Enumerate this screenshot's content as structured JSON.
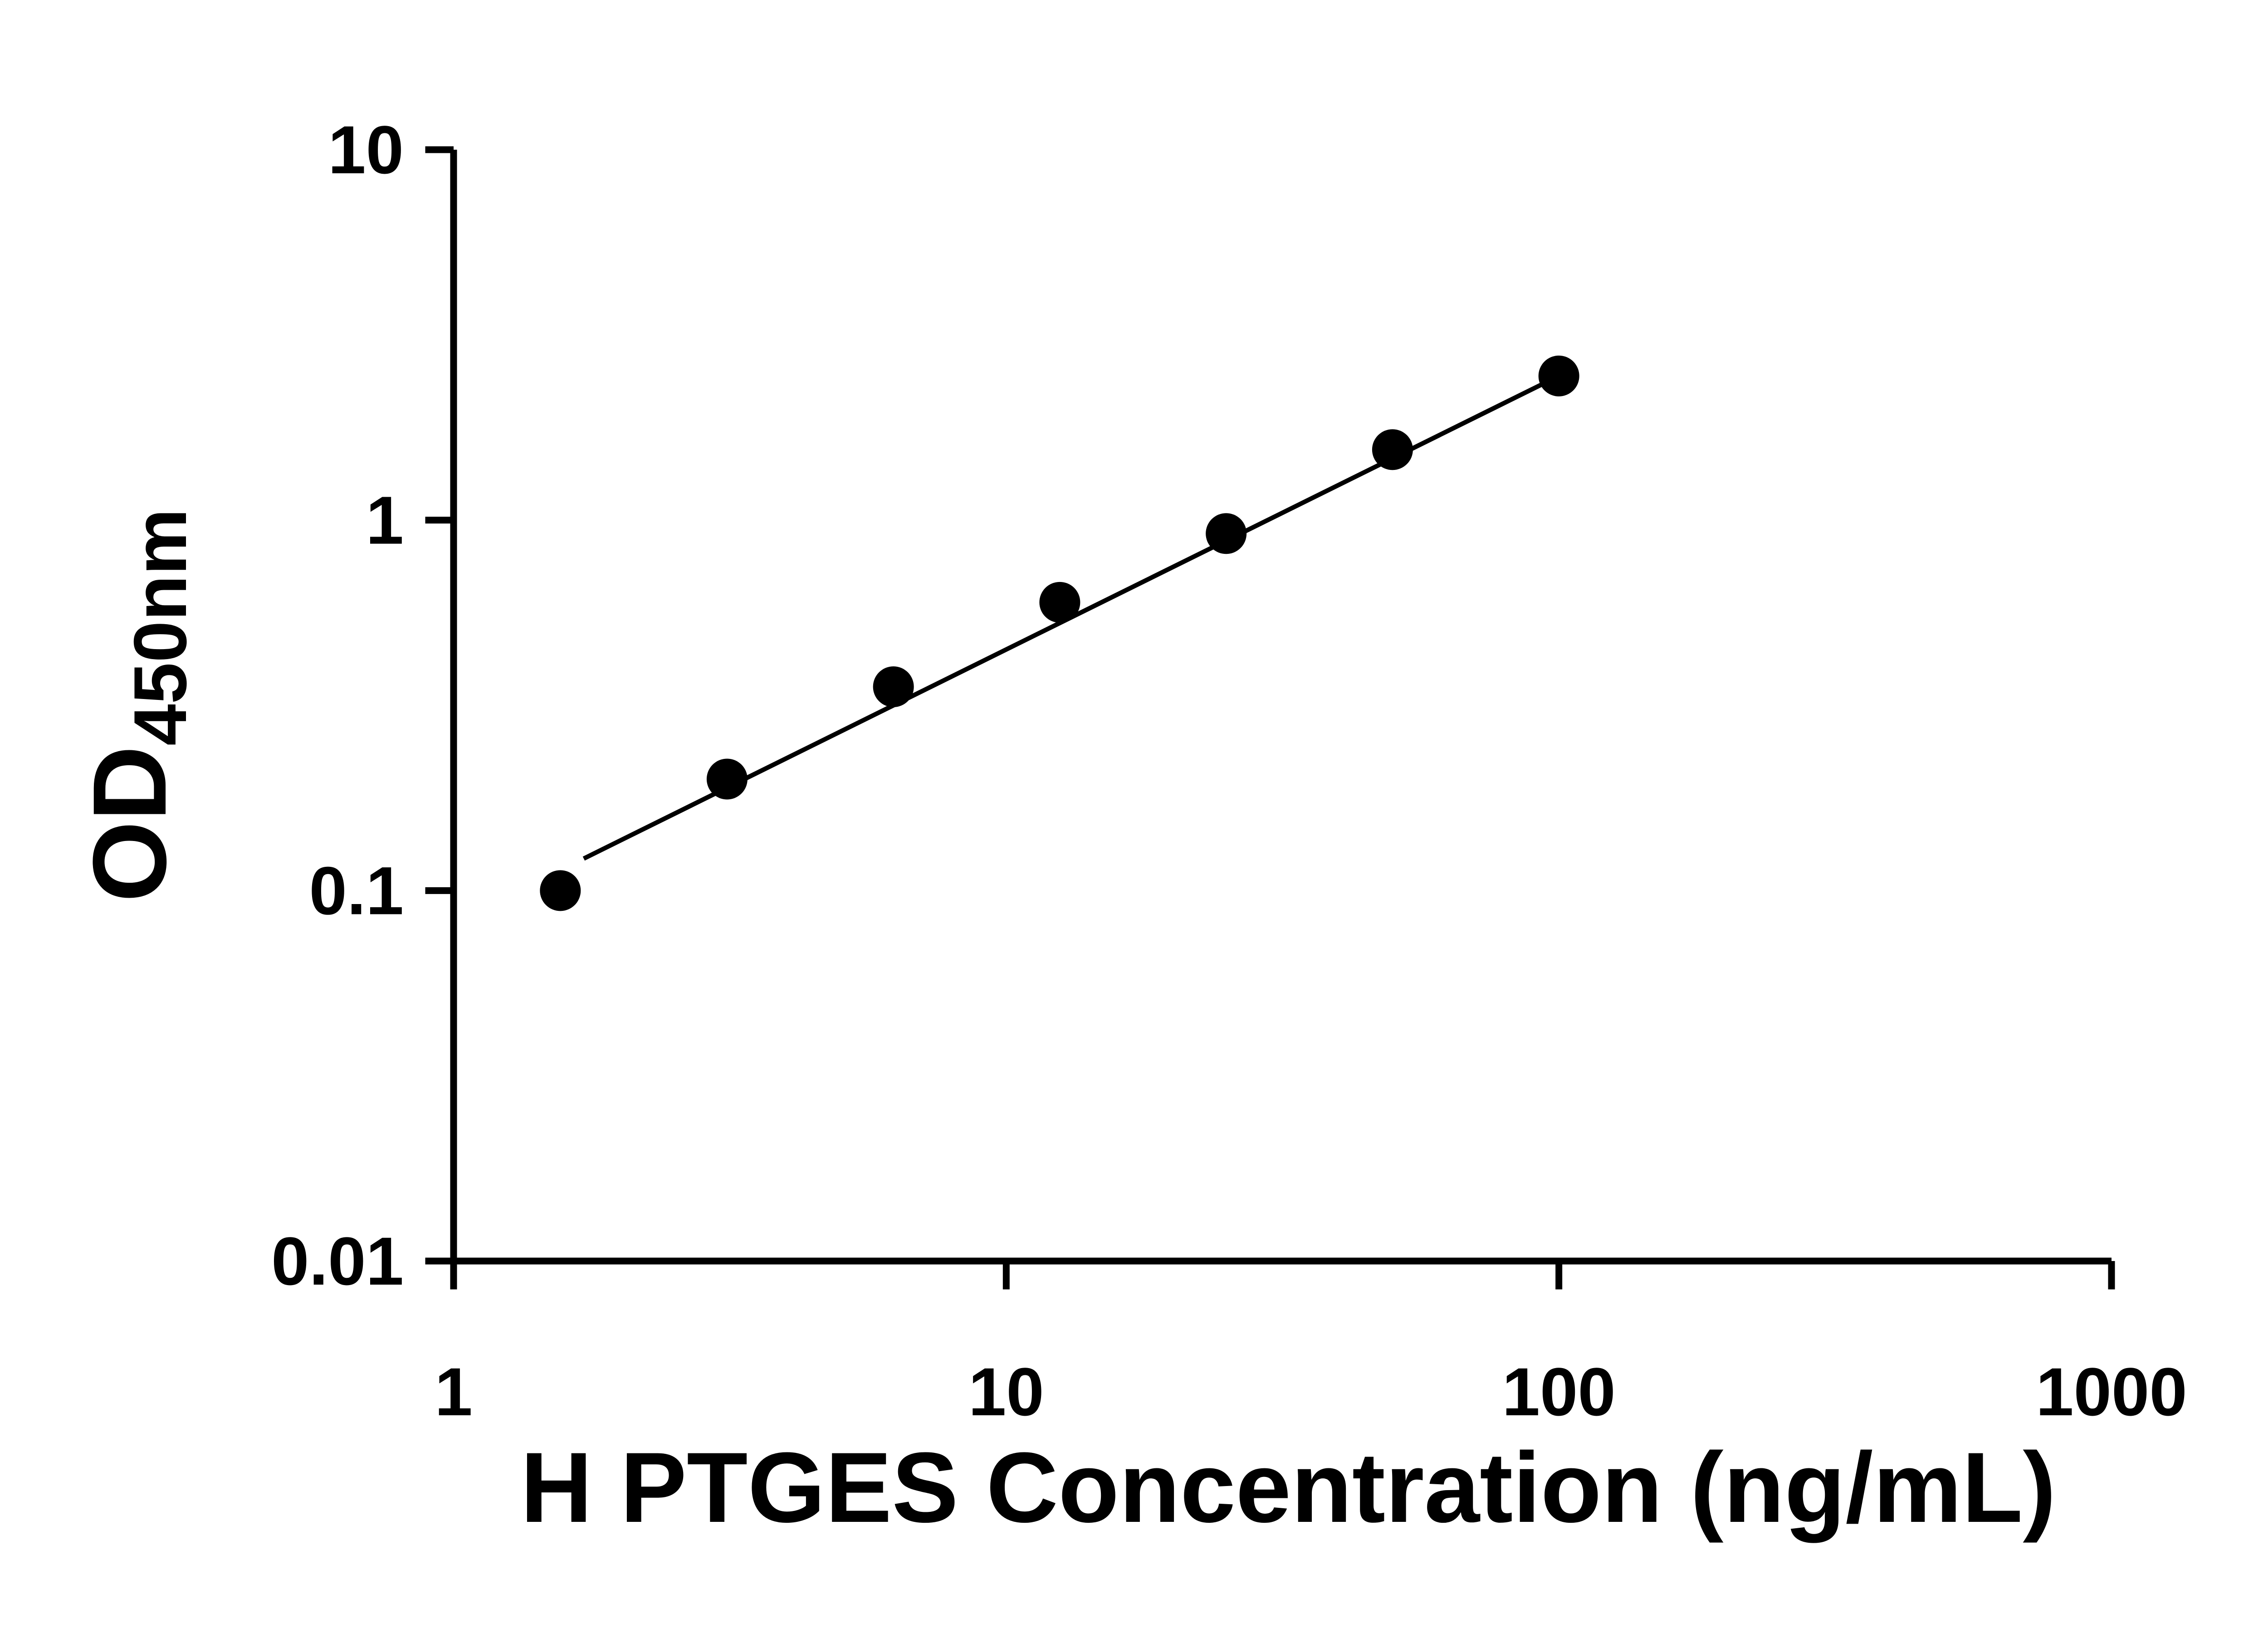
{
  "chart_data": {
    "type": "scatter",
    "title": "",
    "xlabel": "H PTGES Concentration (ng/mL)",
    "ylabel_main": "OD",
    "ylabel_sub": "450nm",
    "x_scale": "log",
    "y_scale": "log",
    "xlim": [
      1,
      1000
    ],
    "ylim": [
      0.01,
      10
    ],
    "x_ticks": [
      1,
      10,
      100,
      1000
    ],
    "x_tick_labels": [
      "1",
      "10",
      "100",
      "1000"
    ],
    "y_ticks": [
      0.01,
      0.1,
      1,
      10
    ],
    "y_tick_labels": [
      "0.01",
      "0.1",
      "1",
      "10"
    ],
    "grid": false,
    "legend": false,
    "x": [
      1.56,
      3.125,
      6.25,
      12.5,
      25,
      50,
      100
    ],
    "y": [
      0.1,
      0.2,
      0.355,
      0.6,
      0.92,
      1.55,
      2.45
    ],
    "trend_line": {
      "x1": 1.72,
      "y1": 0.122,
      "x2": 100,
      "y2": 2.45
    },
    "marker_color": "#000000",
    "line_color": "#000000",
    "axis_color": "#000000",
    "background_color": "#ffffff"
  }
}
